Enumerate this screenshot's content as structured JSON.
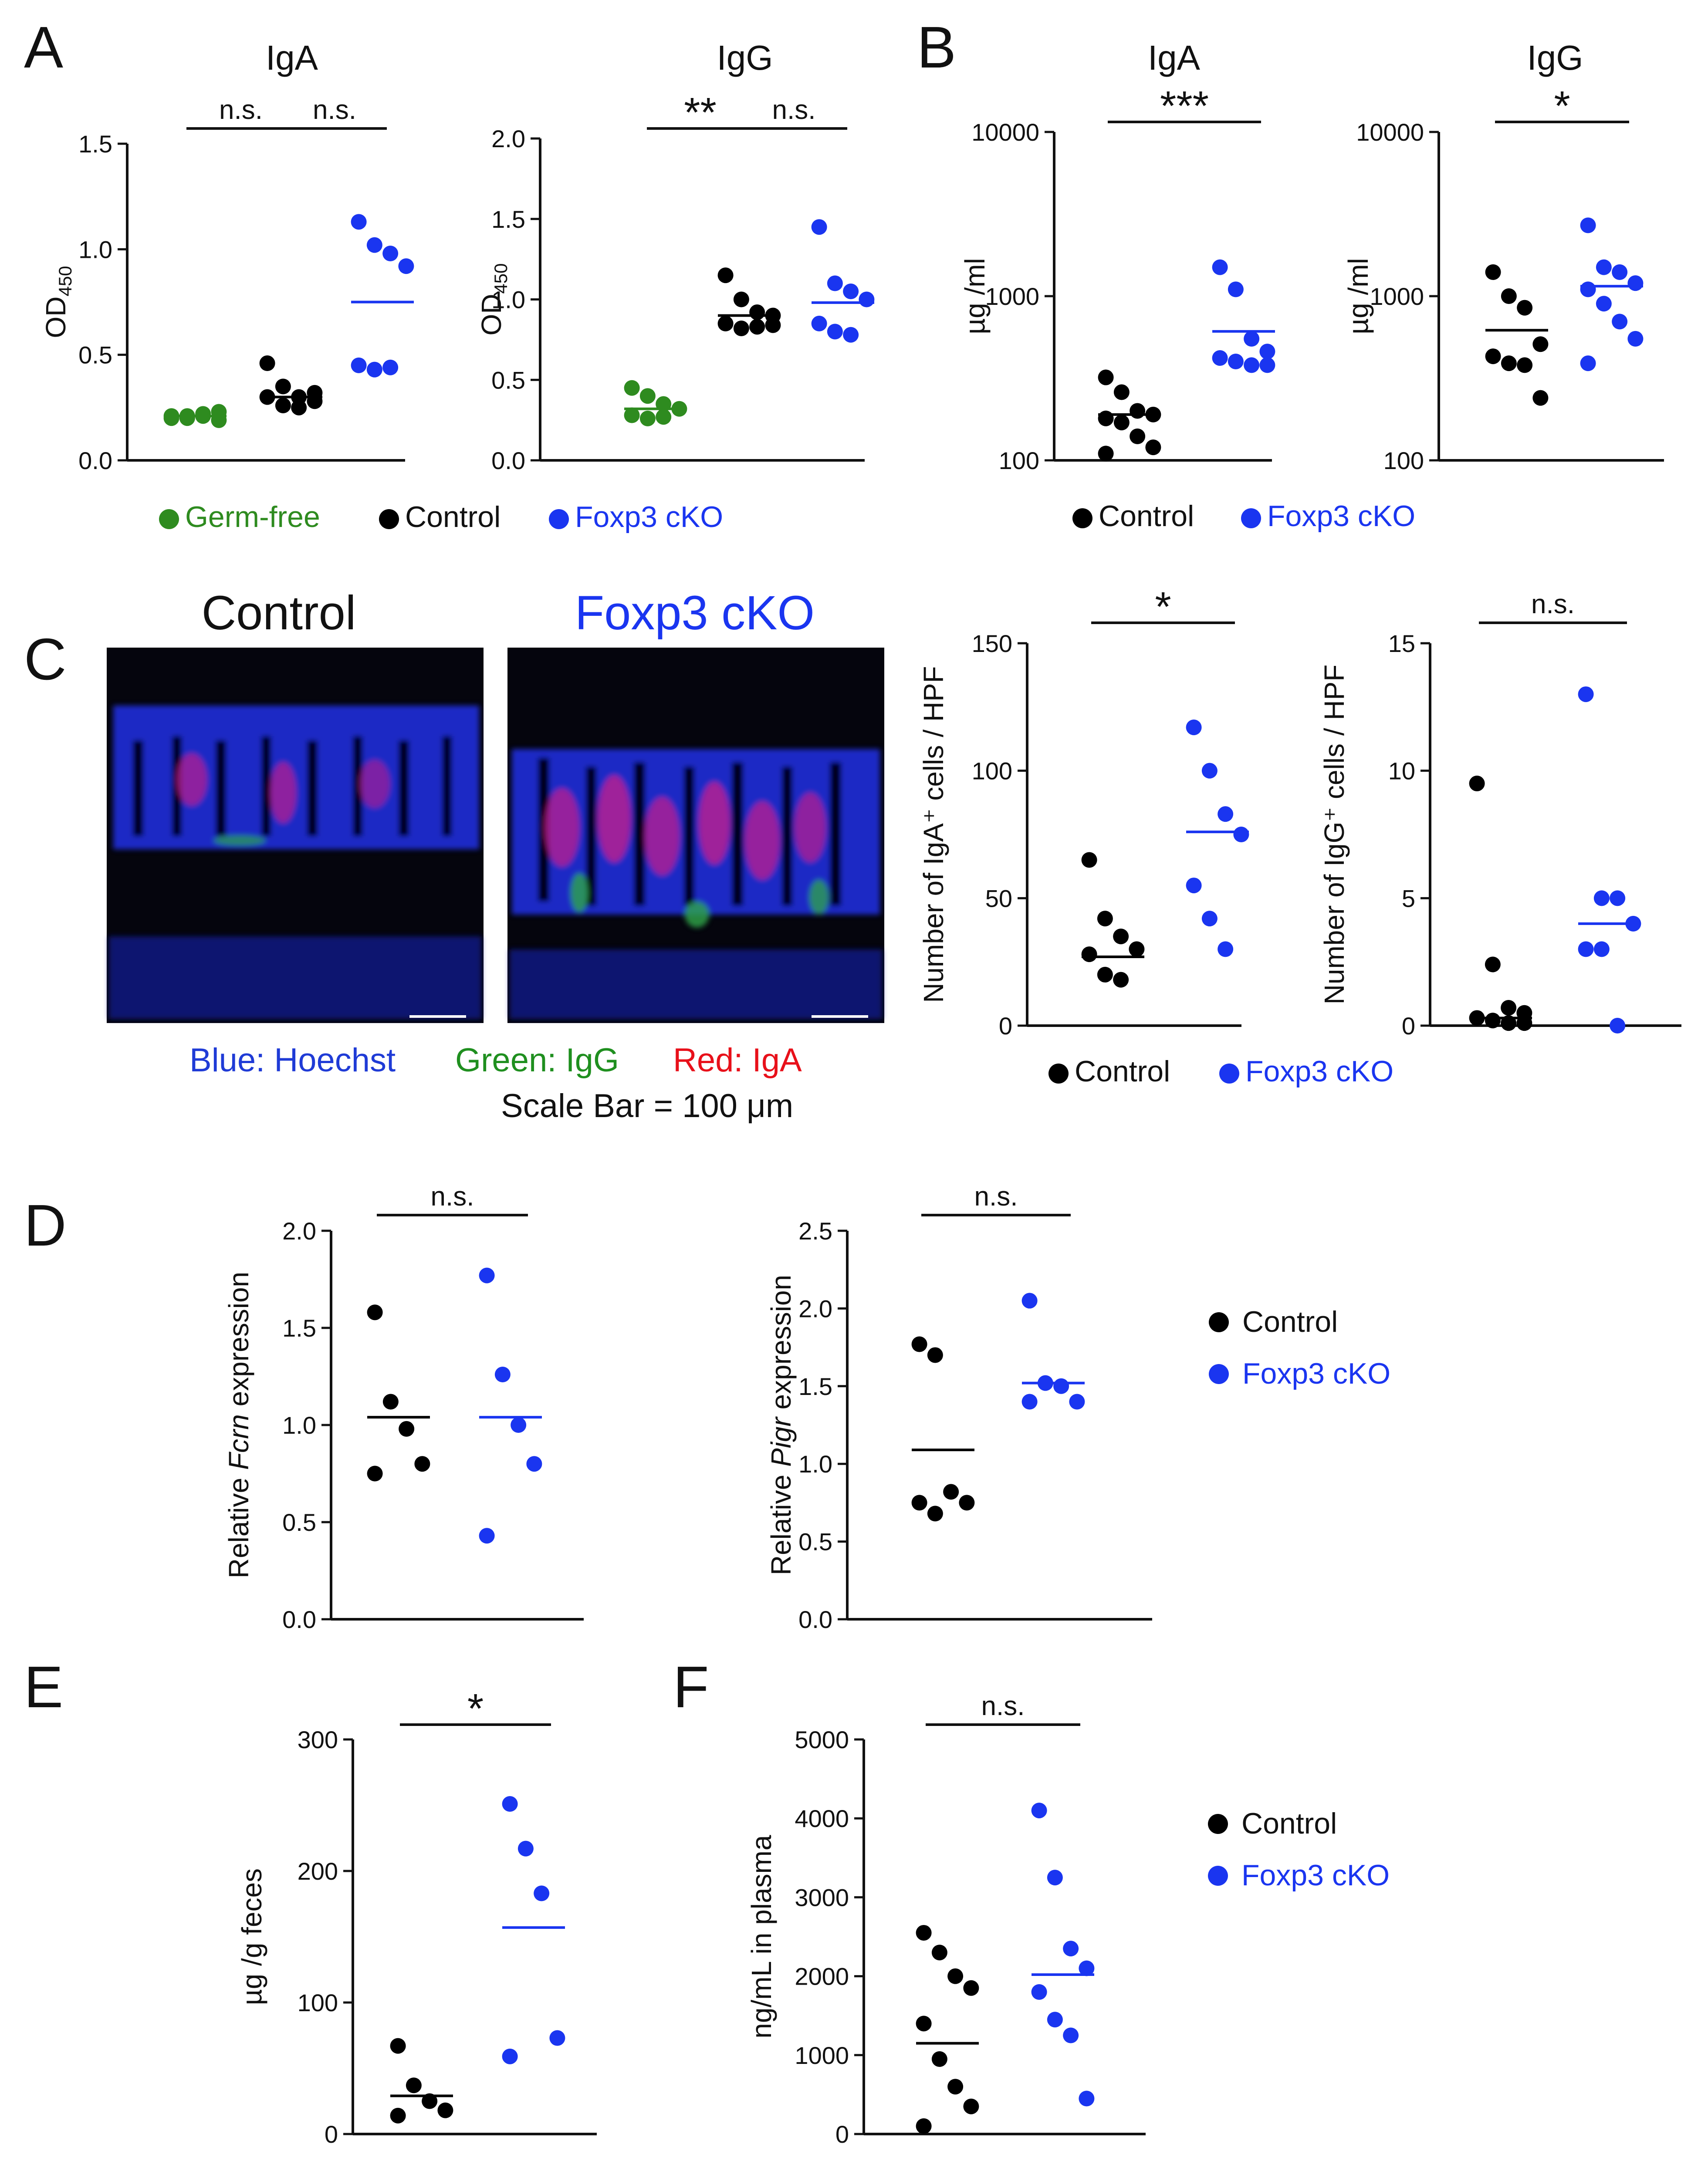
{
  "colors": {
    "germ_free": "#2e8b1f",
    "control": "#000000",
    "foxp3_cko": "#1a35f0",
    "hoechst_blue": "#1f3bd6",
    "igg_green": "#1f8f1f",
    "iga_red": "#e8101a"
  },
  "panels": {
    "A": "A",
    "B": "B",
    "C": "C",
    "D": "D",
    "E": "E",
    "F": "F"
  },
  "legends": {
    "a": {
      "germ_free": "Germ-free",
      "control": "Control",
      "foxp3_cko": "Foxp3 cKO"
    },
    "b": {
      "control": "Control",
      "foxp3_cko": "Foxp3 cKO"
    },
    "c": {
      "control": "Control",
      "foxp3_cko": "Foxp3 cKO"
    },
    "d": {
      "control": "Control",
      "foxp3_cko": "Foxp3 cKO"
    },
    "f": {
      "control": "Control",
      "foxp3_cko": "Foxp3 cKO"
    }
  },
  "images": {
    "control_title": "Control",
    "cko_title": "Foxp3 cKO",
    "caption_blue": "Blue: Hoechst",
    "caption_green": "Green: IgG",
    "caption_red": "Red: IgA",
    "scale_bar": "Scale Bar = 100 μm"
  },
  "chart_data": [
    {
      "id": "A-IgA",
      "type": "scatter",
      "title": "IgA",
      "ylabel": "OD450",
      "ylim": [
        0,
        1.5
      ],
      "yticks": [
        "0.0",
        "0.5",
        "1.0",
        "1.5"
      ],
      "ytick_values": [
        0,
        0.5,
        1.0,
        1.5
      ],
      "groups": [
        {
          "series": "Germ-free",
          "values": [
            0.2,
            0.21,
            0.22,
            0.23,
            0.21,
            0.2,
            0.21,
            0.19
          ],
          "mean": 0.21
        },
        {
          "series": "Control",
          "values": [
            0.46,
            0.35,
            0.3,
            0.32,
            0.3,
            0.26,
            0.25,
            0.28
          ],
          "mean": 0.3
        },
        {
          "series": "Foxp3 cKO",
          "values": [
            1.13,
            1.02,
            0.98,
            0.92,
            0.45,
            0.43,
            0.44
          ],
          "mean": 0.75
        }
      ],
      "significance": [
        {
          "from": 0,
          "to": 1,
          "label": "n.s."
        },
        {
          "from": 1,
          "to": 2,
          "label": "n.s."
        }
      ]
    },
    {
      "id": "A-IgG",
      "type": "scatter",
      "title": "IgG",
      "ylabel": "OD450",
      "ylim": [
        0,
        2.0
      ],
      "yticks": [
        "0.0",
        "0.5",
        "1.0",
        "1.5",
        "2.0"
      ],
      "ytick_values": [
        0,
        0.5,
        1.0,
        1.5,
        2.0
      ],
      "groups": [
        {
          "series": "Germ-free",
          "values": [
            0.45,
            0.4,
            0.35,
            0.32,
            0.28,
            0.26,
            0.27
          ],
          "mean": 0.32
        },
        {
          "series": "Control",
          "values": [
            1.15,
            1.0,
            0.92,
            0.9,
            0.85,
            0.82,
            0.83,
            0.84
          ],
          "mean": 0.9
        },
        {
          "series": "Foxp3 cKO",
          "values": [
            1.45,
            1.1,
            1.05,
            1.0,
            0.85,
            0.8,
            0.78
          ],
          "mean": 0.98
        }
      ],
      "significance": [
        {
          "from": 0,
          "to": 1,
          "label": "**"
        },
        {
          "from": 1,
          "to": 2,
          "label": "n.s."
        }
      ]
    },
    {
      "id": "B-IgA",
      "type": "scatter",
      "title": "IgA",
      "ylabel": "µg /ml",
      "yscale": "log",
      "ylim": [
        100,
        10000
      ],
      "yticks": [
        "100",
        "1000",
        "10000"
      ],
      "ytick_values": [
        100,
        1000,
        10000
      ],
      "groups": [
        {
          "series": "Control",
          "values": [
            320,
            260,
            200,
            190,
            180,
            170,
            140,
            120,
            110
          ],
          "mean": 190
        },
        {
          "series": "Foxp3 cKO",
          "values": [
            1500,
            1100,
            550,
            460,
            420,
            400,
            380,
            380
          ],
          "mean": 610
        }
      ],
      "significance": [
        {
          "from": 0,
          "to": 1,
          "label": "***"
        }
      ]
    },
    {
      "id": "B-IgG",
      "type": "scatter",
      "title": "IgG",
      "ylabel": "µg /ml",
      "yscale": "log",
      "ylim": [
        100,
        10000
      ],
      "yticks": [
        "100",
        "1000",
        "10000"
      ],
      "ytick_values": [
        100,
        1000,
        10000
      ],
      "groups": [
        {
          "series": "Control",
          "values": [
            1400,
            1000,
            850,
            510,
            430,
            390,
            380,
            240
          ],
          "mean": 620
        },
        {
          "series": "Foxp3 cKO",
          "values": [
            2700,
            1500,
            1400,
            1200,
            1100,
            900,
            700,
            550,
            390
          ],
          "mean": 1150
        }
      ],
      "significance": [
        {
          "from": 0,
          "to": 1,
          "label": "*"
        }
      ]
    },
    {
      "id": "C-IgA",
      "type": "scatter",
      "ylabel": "Number of IgA⁺ cells / HPF",
      "ylim": [
        0,
        150
      ],
      "yticks": [
        "0",
        "50",
        "100",
        "150"
      ],
      "ytick_values": [
        0,
        50,
        100,
        150
      ],
      "groups": [
        {
          "series": "Control",
          "values": [
            65,
            42,
            35,
            30,
            28,
            20,
            18
          ],
          "mean": 27
        },
        {
          "series": "Foxp3 cKO",
          "values": [
            117,
            100,
            83,
            75,
            55,
            42,
            30
          ],
          "mean": 76
        }
      ],
      "significance": [
        {
          "from": 0,
          "to": 1,
          "label": "*"
        }
      ]
    },
    {
      "id": "C-IgG",
      "type": "scatter",
      "ylabel": "Number of IgG⁺ cells / HPF",
      "ylim": [
        0,
        15
      ],
      "yticks": [
        "0",
        "5",
        "10",
        "15"
      ],
      "ytick_values": [
        0,
        5,
        10,
        15
      ],
      "groups": [
        {
          "series": "Control",
          "values": [
            9.5,
            2.4,
            0.7,
            0.5,
            0.3,
            0.2,
            0.1,
            0.1
          ],
          "mean": 0.3
        },
        {
          "series": "Foxp3 cKO",
          "values": [
            13,
            5,
            5,
            4,
            3,
            3,
            0
          ],
          "mean": 4
        }
      ],
      "significance": [
        {
          "from": 0,
          "to": 1,
          "label": "n.s."
        }
      ]
    },
    {
      "id": "D-Fcrn",
      "type": "scatter",
      "ylabel_prefix": "Relative ",
      "ylabel_gene": "Fcrn",
      "ylabel_suffix": " expression",
      "ylim": [
        0,
        2.0
      ],
      "yticks": [
        "0.0",
        "0.5",
        "1.0",
        "1.5",
        "2.0"
      ],
      "ytick_values": [
        0,
        0.5,
        1.0,
        1.5,
        2.0
      ],
      "groups": [
        {
          "series": "Control",
          "values": [
            1.58,
            1.12,
            0.98,
            0.8,
            0.75
          ],
          "mean": 1.04
        },
        {
          "series": "Foxp3 cKO",
          "values": [
            1.77,
            1.26,
            1.0,
            0.8,
            0.43
          ],
          "mean": 1.04
        }
      ],
      "significance": [
        {
          "from": 0,
          "to": 1,
          "label": "n.s."
        }
      ]
    },
    {
      "id": "D-Pigr",
      "type": "scatter",
      "ylabel_prefix": "Relative ",
      "ylabel_gene": "Pigr",
      "ylabel_suffix": " expression",
      "ylim": [
        0,
        2.5
      ],
      "yticks": [
        "0.0",
        "0.5",
        "1.0",
        "1.5",
        "2.0",
        "2.5"
      ],
      "ytick_values": [
        0,
        0.5,
        1.0,
        1.5,
        2.0,
        2.5
      ],
      "groups": [
        {
          "series": "Control",
          "values": [
            1.77,
            1.7,
            0.82,
            0.75,
            0.75,
            0.68
          ],
          "mean": 1.09
        },
        {
          "series": "Foxp3 cKO",
          "values": [
            2.05,
            1.52,
            1.5,
            1.4,
            1.4
          ],
          "mean": 1.52
        }
      ],
      "significance": [
        {
          "from": 0,
          "to": 1,
          "label": "n.s."
        }
      ]
    },
    {
      "id": "E",
      "type": "scatter",
      "ylabel": "µg /g feces",
      "ylim": [
        0,
        300
      ],
      "yticks": [
        "0",
        "100",
        "200",
        "300"
      ],
      "ytick_values": [
        0,
        100,
        200,
        300
      ],
      "groups": [
        {
          "series": "Control",
          "values": [
            67,
            37,
            25,
            18,
            14
          ],
          "mean": 29
        },
        {
          "series": "Foxp3 cKO",
          "values": [
            251,
            217,
            183,
            73,
            59
          ],
          "mean": 157
        }
      ],
      "significance": [
        {
          "from": 0,
          "to": 1,
          "label": "*"
        }
      ]
    },
    {
      "id": "F",
      "type": "scatter",
      "ylabel": "ng/mL in plasma",
      "ylim": [
        0,
        5000
      ],
      "yticks": [
        "0",
        "1000",
        "2000",
        "3000",
        "4000",
        "5000"
      ],
      "ytick_values": [
        0,
        1000,
        2000,
        3000,
        4000,
        5000
      ],
      "groups": [
        {
          "series": "Control",
          "values": [
            2550,
            2300,
            2000,
            1850,
            1400,
            950,
            600,
            350,
            100
          ],
          "mean": 1150
        },
        {
          "series": "Foxp3 cKO",
          "values": [
            4100,
            3250,
            2350,
            2100,
            1800,
            1450,
            1250,
            450
          ],
          "mean": 2020
        }
      ],
      "significance": [
        {
          "from": 0,
          "to": 1,
          "label": "n.s."
        }
      ]
    }
  ]
}
